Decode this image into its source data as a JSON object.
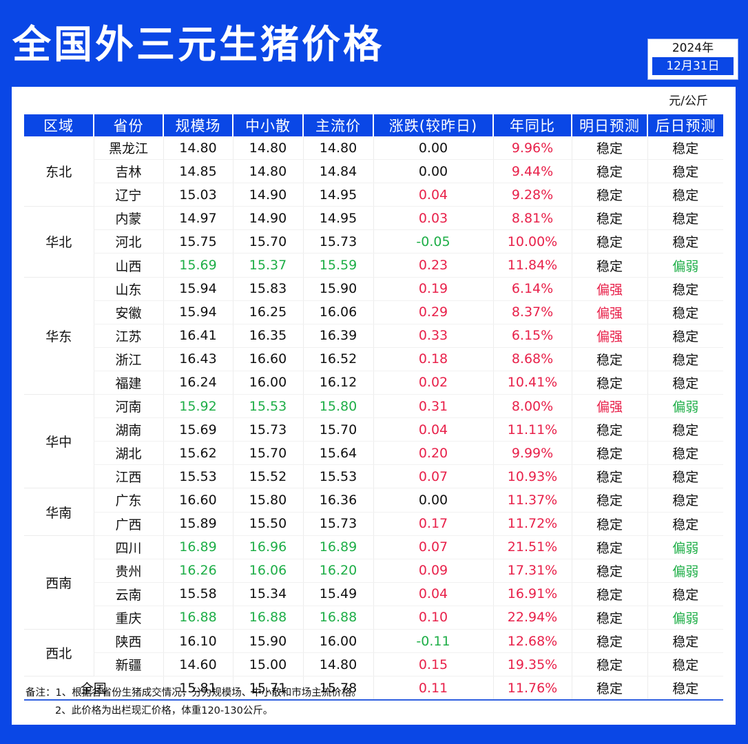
{
  "title": "全国外三元生猪价格",
  "date": {
    "year": "2024年",
    "day": "12月31日"
  },
  "unit": "元/公斤",
  "headers": [
    "区域",
    "省份",
    "规模场",
    "中小散",
    "主流价",
    "涨跌(较昨日)",
    "年同比",
    "明日预测",
    "后日预测"
  ],
  "regions": [
    {
      "name": "东北",
      "rows": 3
    },
    {
      "name": "华北",
      "rows": 3
    },
    {
      "name": "华东",
      "rows": 5
    },
    {
      "name": "华中",
      "rows": 4
    },
    {
      "name": "华南",
      "rows": 2
    },
    {
      "name": "西南",
      "rows": 4
    },
    {
      "name": "西北",
      "rows": 2
    }
  ],
  "rows": [
    {
      "province": "黑龙江",
      "large": "14.80",
      "small": "14.80",
      "main": "14.80",
      "change": "0.00",
      "change_dir": "flat",
      "yoy": "9.96%",
      "tomorrow": "稳定",
      "tomorrow_tone": "neutral",
      "after": "稳定",
      "after_tone": "neutral"
    },
    {
      "province": "吉林",
      "large": "14.85",
      "small": "14.80",
      "main": "14.84",
      "change": "0.00",
      "change_dir": "flat",
      "yoy": "9.44%",
      "tomorrow": "稳定",
      "tomorrow_tone": "neutral",
      "after": "稳定",
      "after_tone": "neutral"
    },
    {
      "province": "辽宁",
      "large": "15.03",
      "small": "14.90",
      "main": "14.95",
      "change": "0.04",
      "change_dir": "up",
      "yoy": "9.28%",
      "tomorrow": "稳定",
      "tomorrow_tone": "neutral",
      "after": "稳定",
      "after_tone": "neutral"
    },
    {
      "province": "内蒙",
      "large": "14.97",
      "small": "14.90",
      "main": "14.95",
      "change": "0.03",
      "change_dir": "up",
      "yoy": "8.81%",
      "tomorrow": "稳定",
      "tomorrow_tone": "neutral",
      "after": "稳定",
      "after_tone": "neutral"
    },
    {
      "province": "河北",
      "large": "15.75",
      "small": "15.70",
      "main": "15.73",
      "change": "-0.05",
      "change_dir": "down",
      "yoy": "10.00%",
      "tomorrow": "稳定",
      "tomorrow_tone": "neutral",
      "after": "稳定",
      "after_tone": "neutral"
    },
    {
      "province": "山西",
      "large": "15.69",
      "small": "15.37",
      "main": "15.59",
      "change": "0.23",
      "change_dir": "up",
      "yoy": "11.84%",
      "tomorrow": "稳定",
      "tomorrow_tone": "neutral",
      "after": "偏弱",
      "after_tone": "weak"
    },
    {
      "province": "山东",
      "large": "15.94",
      "small": "15.83",
      "main": "15.90",
      "change": "0.19",
      "change_dir": "up",
      "yoy": "6.14%",
      "tomorrow": "偏强",
      "tomorrow_tone": "strong",
      "after": "稳定",
      "after_tone": "neutral"
    },
    {
      "province": "安徽",
      "large": "15.94",
      "small": "16.25",
      "main": "16.06",
      "change": "0.29",
      "change_dir": "up",
      "yoy": "8.37%",
      "tomorrow": "偏强",
      "tomorrow_tone": "strong",
      "after": "稳定",
      "after_tone": "neutral"
    },
    {
      "province": "江苏",
      "large": "16.41",
      "small": "16.35",
      "main": "16.39",
      "change": "0.33",
      "change_dir": "up",
      "yoy": "6.15%",
      "tomorrow": "偏强",
      "tomorrow_tone": "strong",
      "after": "稳定",
      "after_tone": "neutral"
    },
    {
      "province": "浙江",
      "large": "16.43",
      "small": "16.60",
      "main": "16.52",
      "change": "0.18",
      "change_dir": "up",
      "yoy": "8.68%",
      "tomorrow": "稳定",
      "tomorrow_tone": "neutral",
      "after": "稳定",
      "after_tone": "neutral"
    },
    {
      "province": "福建",
      "large": "16.24",
      "small": "16.00",
      "main": "16.12",
      "change": "0.02",
      "change_dir": "up",
      "yoy": "10.41%",
      "tomorrow": "稳定",
      "tomorrow_tone": "neutral",
      "after": "稳定",
      "after_tone": "neutral"
    },
    {
      "province": "河南",
      "large": "15.92",
      "small": "15.53",
      "main": "15.80",
      "change": "0.31",
      "change_dir": "up",
      "yoy": "8.00%",
      "tomorrow": "偏强",
      "tomorrow_tone": "strong",
      "after": "偏弱",
      "after_tone": "weak"
    },
    {
      "province": "湖南",
      "large": "15.69",
      "small": "15.73",
      "main": "15.70",
      "change": "0.04",
      "change_dir": "up",
      "yoy": "11.11%",
      "tomorrow": "稳定",
      "tomorrow_tone": "neutral",
      "after": "稳定",
      "after_tone": "neutral"
    },
    {
      "province": "湖北",
      "large": "15.62",
      "small": "15.70",
      "main": "15.64",
      "change": "0.20",
      "change_dir": "up",
      "yoy": "9.99%",
      "tomorrow": "稳定",
      "tomorrow_tone": "neutral",
      "after": "稳定",
      "after_tone": "neutral"
    },
    {
      "province": "江西",
      "large": "15.53",
      "small": "15.52",
      "main": "15.53",
      "change": "0.07",
      "change_dir": "up",
      "yoy": "10.93%",
      "tomorrow": "稳定",
      "tomorrow_tone": "neutral",
      "after": "稳定",
      "after_tone": "neutral"
    },
    {
      "province": "广东",
      "large": "16.60",
      "small": "15.80",
      "main": "16.36",
      "change": "0.00",
      "change_dir": "flat",
      "yoy": "11.37%",
      "tomorrow": "稳定",
      "tomorrow_tone": "neutral",
      "after": "稳定",
      "after_tone": "neutral"
    },
    {
      "province": "广西",
      "large": "15.89",
      "small": "15.50",
      "main": "15.73",
      "change": "0.17",
      "change_dir": "up",
      "yoy": "11.72%",
      "tomorrow": "稳定",
      "tomorrow_tone": "neutral",
      "after": "稳定",
      "after_tone": "neutral"
    },
    {
      "province": "四川",
      "large": "16.89",
      "small": "16.96",
      "main": "16.89",
      "change": "0.07",
      "change_dir": "up",
      "yoy": "21.51%",
      "tomorrow": "稳定",
      "tomorrow_tone": "neutral",
      "after": "偏弱",
      "after_tone": "weak"
    },
    {
      "province": "贵州",
      "large": "16.26",
      "small": "16.06",
      "main": "16.20",
      "change": "0.09",
      "change_dir": "up",
      "yoy": "17.31%",
      "tomorrow": "稳定",
      "tomorrow_tone": "neutral",
      "after": "偏弱",
      "after_tone": "weak"
    },
    {
      "province": "云南",
      "large": "15.58",
      "small": "15.34",
      "main": "15.49",
      "change": "0.04",
      "change_dir": "up",
      "yoy": "16.91%",
      "tomorrow": "稳定",
      "tomorrow_tone": "neutral",
      "after": "稳定",
      "after_tone": "neutral"
    },
    {
      "province": "重庆",
      "large": "16.88",
      "small": "16.88",
      "main": "16.88",
      "change": "0.10",
      "change_dir": "up",
      "yoy": "22.94%",
      "tomorrow": "稳定",
      "tomorrow_tone": "neutral",
      "after": "偏弱",
      "after_tone": "weak"
    },
    {
      "province": "陕西",
      "large": "16.10",
      "small": "15.90",
      "main": "16.00",
      "change": "-0.11",
      "change_dir": "down",
      "yoy": "12.68%",
      "tomorrow": "稳定",
      "tomorrow_tone": "neutral",
      "after": "稳定",
      "after_tone": "neutral"
    },
    {
      "province": "新疆",
      "large": "14.60",
      "small": "15.00",
      "main": "14.80",
      "change": "0.15",
      "change_dir": "up",
      "yoy": "19.35%",
      "tomorrow": "稳定",
      "tomorrow_tone": "neutral",
      "after": "稳定",
      "after_tone": "neutral"
    }
  ],
  "national": {
    "label": "全国",
    "large": "15.81",
    "small": "15.71",
    "main": "15.78",
    "change": "0.11",
    "change_dir": "up",
    "yoy": "11.76%",
    "tomorrow": "稳定",
    "tomorrow_tone": "neutral",
    "after": "稳定",
    "after_tone": "neutral"
  },
  "notes": [
    "备注：1、根据各省份生猪成交情况，分为规模场、中小散和市场主流价格。",
    "2、此价格为出栏现汇价格，体重120-130公斤。"
  ],
  "colors": {
    "brand_blue": "#0a47e6",
    "up_red": "#e8214a",
    "down_green": "#1eae47"
  }
}
